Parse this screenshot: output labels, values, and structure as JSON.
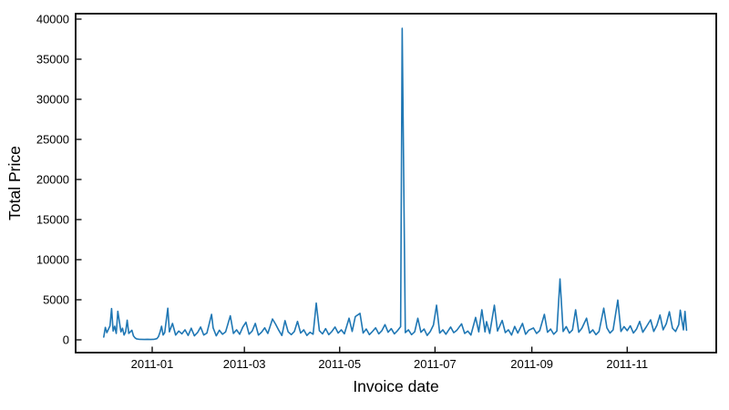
{
  "figure": {
    "background": "#ffffff"
  },
  "chart_data": {
    "type": "line",
    "title": "",
    "xlabel": "Invoice date",
    "ylabel": "Total Price",
    "legend": null,
    "grid": false,
    "line_color": "#1f77b4",
    "axis_color": "#000000",
    "tick_direction": "in",
    "y_ticks": [
      0,
      5000,
      10000,
      15000,
      20000,
      25000,
      30000,
      35000,
      40000
    ],
    "x_ticks": [
      {
        "label": "2011-01",
        "date": "2011-01-01"
      },
      {
        "label": "2011-03",
        "date": "2011-03-01"
      },
      {
        "label": "2011-05",
        "date": "2011-05-01"
      },
      {
        "label": "2011-07",
        "date": "2011-07-01"
      },
      {
        "label": "2011-09",
        "date": "2011-09-01"
      },
      {
        "label": "2011-11",
        "date": "2011-11-01"
      }
    ],
    "x_domain": [
      "2010-11-13",
      "2011-12-28"
    ],
    "y_domain": [
      -1590,
      40680
    ],
    "ylim_data": [
      0,
      38850
    ],
    "points": [
      [
        "2010-12-01",
        350
      ],
      [
        "2010-12-02",
        1550
      ],
      [
        "2010-12-03",
        900
      ],
      [
        "2010-12-05",
        1750
      ],
      [
        "2010-12-06",
        3900
      ],
      [
        "2010-12-07",
        1100
      ],
      [
        "2010-12-08",
        1700
      ],
      [
        "2010-12-09",
        800
      ],
      [
        "2010-12-10",
        3560
      ],
      [
        "2010-12-12",
        1000
      ],
      [
        "2010-12-13",
        1450
      ],
      [
        "2010-12-14",
        600
      ],
      [
        "2010-12-15",
        1000
      ],
      [
        "2010-12-16",
        2450
      ],
      [
        "2010-12-17",
        800
      ],
      [
        "2010-12-19",
        1200
      ],
      [
        "2010-12-20",
        500
      ],
      [
        "2010-12-21",
        250
      ],
      [
        "2010-12-22",
        120
      ],
      [
        "2010-12-24",
        60
      ],
      [
        "2010-12-27",
        50
      ],
      [
        "2010-12-29",
        60
      ],
      [
        "2010-12-31",
        50
      ],
      [
        "2011-01-02",
        60
      ],
      [
        "2011-01-04",
        150
      ],
      [
        "2011-01-05",
        400
      ],
      [
        "2011-01-06",
        950
      ],
      [
        "2011-01-07",
        1700
      ],
      [
        "2011-01-08",
        600
      ],
      [
        "2011-01-09",
        900
      ],
      [
        "2011-01-11",
        3940
      ],
      [
        "2011-01-12",
        1000
      ],
      [
        "2011-01-14",
        2050
      ],
      [
        "2011-01-16",
        600
      ],
      [
        "2011-01-18",
        1100
      ],
      [
        "2011-01-20",
        750
      ],
      [
        "2011-01-22",
        1250
      ],
      [
        "2011-01-24",
        550
      ],
      [
        "2011-01-26",
        1450
      ],
      [
        "2011-01-28",
        500
      ],
      [
        "2011-01-30",
        900
      ],
      [
        "2011-02-01",
        1600
      ],
      [
        "2011-02-03",
        600
      ],
      [
        "2011-02-05",
        850
      ],
      [
        "2011-02-08",
        3180
      ],
      [
        "2011-02-09",
        1500
      ],
      [
        "2011-02-11",
        500
      ],
      [
        "2011-02-13",
        1200
      ],
      [
        "2011-02-15",
        700
      ],
      [
        "2011-02-17",
        1000
      ],
      [
        "2011-02-20",
        3000
      ],
      [
        "2011-02-22",
        800
      ],
      [
        "2011-02-24",
        1250
      ],
      [
        "2011-02-26",
        700
      ],
      [
        "2011-02-28",
        1600
      ],
      [
        "2011-03-02",
        2200
      ],
      [
        "2011-03-04",
        700
      ],
      [
        "2011-03-06",
        1100
      ],
      [
        "2011-03-08",
        2050
      ],
      [
        "2011-03-10",
        600
      ],
      [
        "2011-03-12",
        950
      ],
      [
        "2011-03-14",
        1500
      ],
      [
        "2011-03-16",
        800
      ],
      [
        "2011-03-19",
        2600
      ],
      [
        "2011-03-21",
        1950
      ],
      [
        "2011-03-23",
        1200
      ],
      [
        "2011-03-25",
        550
      ],
      [
        "2011-03-27",
        2400
      ],
      [
        "2011-03-29",
        1000
      ],
      [
        "2011-03-31",
        650
      ],
      [
        "2011-04-02",
        1050
      ],
      [
        "2011-04-04",
        2300
      ],
      [
        "2011-04-06",
        850
      ],
      [
        "2011-04-08",
        1250
      ],
      [
        "2011-04-10",
        550
      ],
      [
        "2011-04-12",
        950
      ],
      [
        "2011-04-14",
        700
      ],
      [
        "2011-04-16",
        4580
      ],
      [
        "2011-04-18",
        1150
      ],
      [
        "2011-04-20",
        750
      ],
      [
        "2011-04-22",
        1400
      ],
      [
        "2011-04-24",
        650
      ],
      [
        "2011-04-26",
        1050
      ],
      [
        "2011-04-28",
        1600
      ],
      [
        "2011-04-30",
        850
      ],
      [
        "2011-05-02",
        1250
      ],
      [
        "2011-05-04",
        750
      ],
      [
        "2011-05-07",
        2700
      ],
      [
        "2011-05-09",
        1050
      ],
      [
        "2011-05-11",
        2900
      ],
      [
        "2011-05-14",
        3300
      ],
      [
        "2011-05-16",
        850
      ],
      [
        "2011-05-18",
        1350
      ],
      [
        "2011-05-20",
        650
      ],
      [
        "2011-05-22",
        1050
      ],
      [
        "2011-05-24",
        1500
      ],
      [
        "2011-05-26",
        750
      ],
      [
        "2011-05-28",
        1150
      ],
      [
        "2011-05-30",
        1900
      ],
      [
        "2011-06-01",
        950
      ],
      [
        "2011-06-03",
        1400
      ],
      [
        "2011-06-05",
        750
      ],
      [
        "2011-06-07",
        1150
      ],
      [
        "2011-06-09",
        1650
      ],
      [
        "2011-06-10",
        38850
      ],
      [
        "2011-06-12",
        900
      ],
      [
        "2011-06-14",
        1250
      ],
      [
        "2011-06-16",
        650
      ],
      [
        "2011-06-18",
        1000
      ],
      [
        "2011-06-20",
        2690
      ],
      [
        "2011-06-22",
        950
      ],
      [
        "2011-06-24",
        1350
      ],
      [
        "2011-06-26",
        550
      ],
      [
        "2011-06-28",
        1050
      ],
      [
        "2011-06-30",
        1850
      ],
      [
        "2011-07-02",
        4320
      ],
      [
        "2011-07-04",
        850
      ],
      [
        "2011-07-06",
        1250
      ],
      [
        "2011-07-08",
        700
      ],
      [
        "2011-07-11",
        1600
      ],
      [
        "2011-07-13",
        900
      ],
      [
        "2011-07-15",
        1200
      ],
      [
        "2011-07-18",
        2000
      ],
      [
        "2011-07-20",
        800
      ],
      [
        "2011-07-22",
        1100
      ],
      [
        "2011-07-24",
        600
      ],
      [
        "2011-07-27",
        2800
      ],
      [
        "2011-07-29",
        1000
      ],
      [
        "2011-07-31",
        3750
      ],
      [
        "2011-08-02",
        1000
      ],
      [
        "2011-08-03",
        2270
      ],
      [
        "2011-08-05",
        800
      ],
      [
        "2011-08-08",
        4320
      ],
      [
        "2011-08-10",
        1100
      ],
      [
        "2011-08-13",
        2420
      ],
      [
        "2011-08-15",
        900
      ],
      [
        "2011-08-17",
        1250
      ],
      [
        "2011-08-19",
        600
      ],
      [
        "2011-08-21",
        1670
      ],
      [
        "2011-08-23",
        850
      ],
      [
        "2011-08-26",
        2050
      ],
      [
        "2011-08-28",
        700
      ],
      [
        "2011-08-30",
        1200
      ],
      [
        "2011-09-02",
        1480
      ],
      [
        "2011-09-04",
        800
      ],
      [
        "2011-09-06",
        1150
      ],
      [
        "2011-09-09",
        3180
      ],
      [
        "2011-09-11",
        950
      ],
      [
        "2011-09-13",
        1350
      ],
      [
        "2011-09-15",
        700
      ],
      [
        "2011-09-17",
        1100
      ],
      [
        "2011-09-19",
        7600
      ],
      [
        "2011-09-21",
        1050
      ],
      [
        "2011-09-23",
        1650
      ],
      [
        "2011-09-25",
        850
      ],
      [
        "2011-09-27",
        1250
      ],
      [
        "2011-09-29",
        3750
      ],
      [
        "2011-10-01",
        950
      ],
      [
        "2011-10-03",
        1450
      ],
      [
        "2011-10-06",
        2700
      ],
      [
        "2011-10-08",
        850
      ],
      [
        "2011-10-10",
        1250
      ],
      [
        "2011-10-12",
        650
      ],
      [
        "2011-10-14",
        1050
      ],
      [
        "2011-10-17",
        3950
      ],
      [
        "2011-10-19",
        1500
      ],
      [
        "2011-10-21",
        850
      ],
      [
        "2011-10-23",
        1250
      ],
      [
        "2011-10-26",
        4960
      ],
      [
        "2011-10-28",
        1050
      ],
      [
        "2011-10-30",
        1650
      ],
      [
        "2011-11-01",
        1150
      ],
      [
        "2011-11-03",
        1750
      ],
      [
        "2011-11-05",
        850
      ],
      [
        "2011-11-07",
        1350
      ],
      [
        "2011-11-09",
        2300
      ],
      [
        "2011-11-11",
        950
      ],
      [
        "2011-11-13",
        1550
      ],
      [
        "2011-11-16",
        2500
      ],
      [
        "2011-11-18",
        1050
      ],
      [
        "2011-11-20",
        1800
      ],
      [
        "2011-11-22",
        3100
      ],
      [
        "2011-11-24",
        1250
      ],
      [
        "2011-11-26",
        2000
      ],
      [
        "2011-11-28",
        3500
      ],
      [
        "2011-11-30",
        1450
      ],
      [
        "2011-12-02",
        1050
      ],
      [
        "2011-12-04",
        1900
      ],
      [
        "2011-12-05",
        3700
      ],
      [
        "2011-12-07",
        1250
      ],
      [
        "2011-12-08",
        3550
      ],
      [
        "2011-12-09",
        1200
      ]
    ]
  }
}
